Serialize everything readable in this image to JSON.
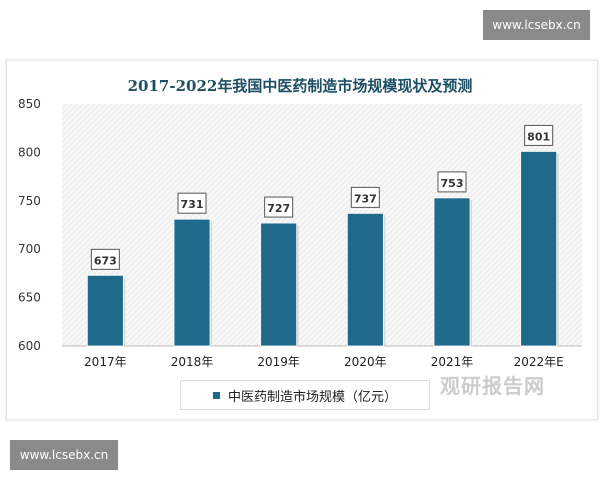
{
  "watermark": "www.lcsebx.cn",
  "logo_text": "观研报告网",
  "chart_data": {
    "type": "bar",
    "title": "2017-2022年我国中医药制造市场规模现状及预测",
    "categories": [
      "2017年",
      "2018年",
      "2019年",
      "2020年",
      "2021年",
      "2022年E"
    ],
    "series": [
      {
        "name": "中医药制造市场规模（亿元）",
        "values": [
          673,
          731,
          727,
          737,
          753,
          801
        ],
        "color": "#1f6a8a"
      }
    ],
    "yticks": [
      600,
      650,
      700,
      750,
      800,
      850
    ],
    "ylim": [
      600,
      850
    ],
    "xlabel": "",
    "ylabel": "",
    "legend_position": "bottom"
  }
}
